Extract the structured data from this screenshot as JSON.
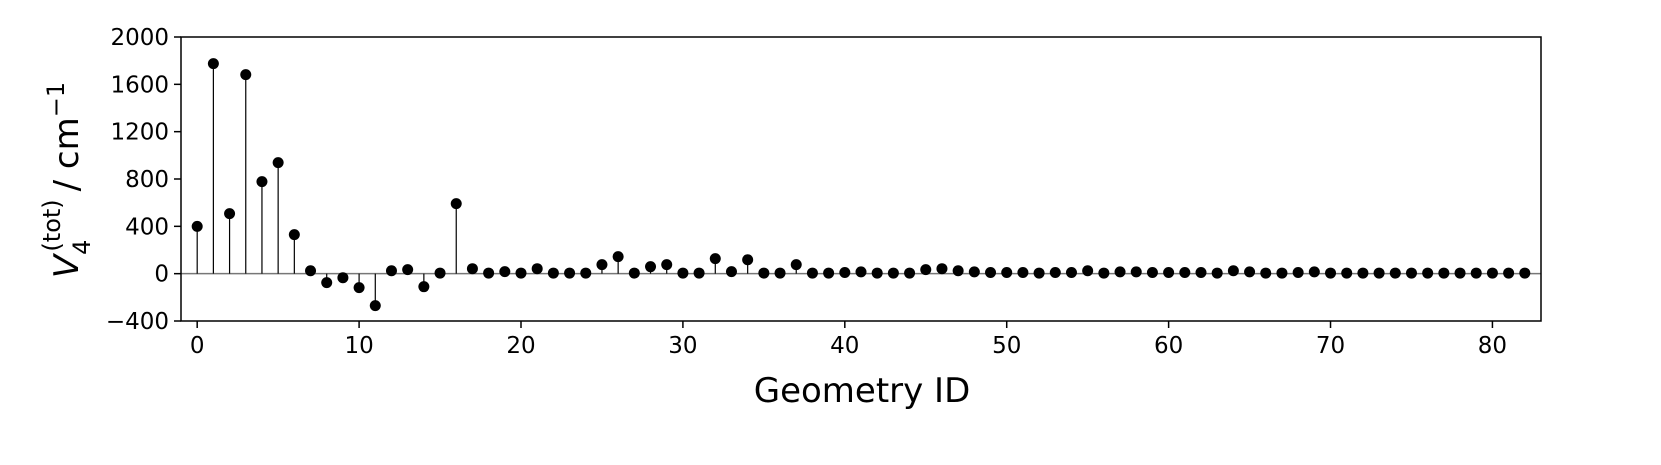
{
  "chart_data": {
    "type": "stem",
    "xlabel": "Geometry ID",
    "ylabel": {
      "symbol": "V",
      "subscript": "4",
      "superscript": "(tot)",
      "unit": "/ cm",
      "unit_exponent": "−1"
    },
    "x": [
      0,
      1,
      2,
      3,
      4,
      5,
      6,
      7,
      8,
      9,
      10,
      11,
      12,
      13,
      14,
      15,
      16,
      17,
      18,
      19,
      20,
      21,
      22,
      23,
      24,
      25,
      26,
      27,
      28,
      29,
      30,
      31,
      32,
      33,
      34,
      35,
      36,
      37,
      38,
      39,
      40,
      41,
      42,
      43,
      44,
      45,
      46,
      47,
      48,
      49,
      50,
      51,
      52,
      53,
      54,
      55,
      56,
      57,
      58,
      59,
      60,
      61,
      62,
      63,
      64,
      65,
      66,
      67,
      68,
      69,
      70,
      71,
      72,
      73,
      74,
      75,
      76,
      77,
      78,
      79,
      80,
      81,
      82
    ],
    "values": [
      400,
      1775,
      507,
      1682,
      778,
      938,
      330,
      25,
      -76,
      -34,
      -118,
      -270,
      25,
      34,
      -110,
      5,
      592,
      42,
      5,
      17,
      5,
      42,
      5,
      5,
      5,
      76,
      144,
      5,
      59,
      76,
      5,
      5,
      127,
      17,
      118,
      5,
      5,
      76,
      5,
      5,
      10,
      15,
      5,
      5,
      5,
      34,
      42,
      25,
      15,
      10,
      10,
      10,
      5,
      10,
      10,
      25,
      5,
      15,
      15,
      10,
      10,
      10,
      10,
      5,
      25,
      15,
      5,
      5,
      10,
      15,
      5,
      5,
      5,
      5,
      5,
      5,
      5,
      5,
      5,
      5,
      5,
      5,
      5
    ],
    "color": "#000000",
    "xlim": [
      -1,
      83
    ],
    "ylim": [
      -400,
      2000
    ],
    "xticks": [
      0,
      10,
      20,
      30,
      40,
      50,
      60,
      70,
      80
    ],
    "yticks": [
      {
        "value": -400,
        "label": "−400"
      },
      0,
      400,
      800,
      1200,
      1600,
      2000
    ]
  }
}
